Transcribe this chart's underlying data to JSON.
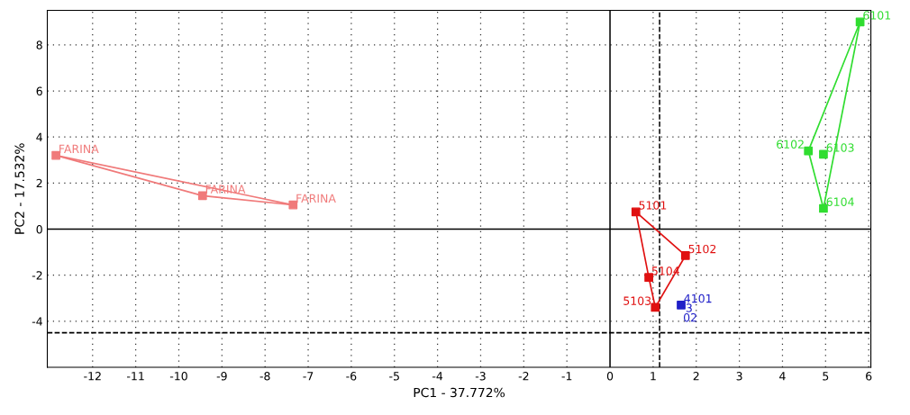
{
  "chart_data": {
    "type": "scatter",
    "xlabel": "PC1 - 37.772%",
    "ylabel": "PC2 - 17.532%",
    "xlim": [
      -13.05,
      6.05
    ],
    "ylim": [
      -6,
      9.5
    ],
    "xticks": [
      -12,
      -11,
      -10,
      -9,
      -8,
      -7,
      -6,
      -5,
      -4,
      -3,
      -2,
      -1,
      0,
      1,
      2,
      3,
      4,
      5,
      6
    ],
    "yticks": [
      -4,
      -2,
      0,
      2,
      4,
      6,
      8
    ],
    "grid": true,
    "marker": "square",
    "series": [
      {
        "type": "line",
        "color": "#f07a7a",
        "x": [
          -12.85,
          -9.45
        ],
        "values": [
          3.2,
          1.45
        ],
        "marker": "none"
      },
      {
        "type": "line",
        "color": "#f07a7a",
        "x": [
          -9.45,
          -7.35
        ],
        "values": [
          1.45,
          1.05
        ],
        "marker": "none"
      },
      {
        "type": "line",
        "color": "#f07a7a",
        "x": [
          -12.85,
          -7.35
        ],
        "values": [
          3.2,
          1.05
        ],
        "marker": "none"
      },
      {
        "color": "#f07a7a",
        "x": [
          -12.85,
          -9.45,
          -7.35
        ],
        "values": [
          3.2,
          1.45,
          1.05
        ]
      },
      {
        "type": "line",
        "color": "#e01010",
        "x": [
          0.6,
          1.75
        ],
        "values": [
          0.75,
          -1.15
        ],
        "marker": "none"
      },
      {
        "type": "line",
        "color": "#e01010",
        "x": [
          1.05,
          1.75
        ],
        "values": [
          -3.4,
          -1.15
        ],
        "marker": "none"
      },
      {
        "type": "line",
        "color": "#e01010",
        "x": [
          0.9,
          1.05
        ],
        "values": [
          -2.1,
          -3.4
        ],
        "marker": "none"
      },
      {
        "type": "line",
        "color": "#e01010",
        "x": [
          0.6,
          0.9
        ],
        "values": [
          0.75,
          -2.1
        ],
        "marker": "none"
      },
      {
        "color": "#e01010",
        "x": [
          0.6,
          1.75,
          1.05,
          0.9
        ],
        "values": [
          0.75,
          -1.15,
          -3.4,
          -2.1
        ]
      },
      {
        "color": "#2020c8",
        "x": [
          1.65
        ],
        "values": [
          -3.3
        ]
      },
      {
        "type": "line",
        "color": "#30dd30",
        "x": [
          4.6,
          5.8
        ],
        "values": [
          3.4,
          9.0
        ],
        "marker": "none"
      },
      {
        "type": "line",
        "color": "#30dd30",
        "x": [
          4.6,
          4.95
        ],
        "values": [
          3.4,
          0.9
        ],
        "marker": "none"
      },
      {
        "type": "line",
        "color": "#30dd30",
        "x": [
          4.95,
          5.8
        ],
        "values": [
          0.9,
          9.0
        ],
        "marker": "none"
      },
      {
        "color": "#30dd30",
        "x": [
          5.8,
          4.6,
          4.95,
          4.95
        ],
        "values": [
          9.0,
          3.4,
          3.25,
          0.9
        ]
      }
    ],
    "ref_lines": [
      {
        "axis": "x",
        "value": 1.15,
        "color": "#000000",
        "line_style": "dashed"
      },
      {
        "axis": "y",
        "value": -4.5,
        "color": "#000000",
        "line_style": "dashed"
      }
    ],
    "annotations": [
      {
        "text": "FARINA",
        "x": -12.85,
        "y": 3.2
      },
      {
        "text": "FARINA",
        "x": -9.45,
        "y": 1.45
      },
      {
        "text": "FARINA",
        "x": -7.35,
        "y": 1.05
      },
      {
        "text": "5101",
        "x": 0.6,
        "y": 0.75
      },
      {
        "text": "5102",
        "x": 1.75,
        "y": -1.15
      },
      {
        "text": "5104",
        "x": 0.9,
        "y": -2.1
      },
      {
        "text": "5103",
        "x": 1.05,
        "y": -3.4
      },
      {
        "text": "4101",
        "x": 1.65,
        "y": -3.3
      },
      "3",
      "02",
      {
        "text": "6101",
        "x": 5.8,
        "y": 9.0
      },
      {
        "text": "6102",
        "x": 4.6,
        "y": 3.4
      },
      {
        "text": "6103",
        "x": 4.95,
        "y": 3.25
      },
      {
        "text": "6104",
        "x": 4.95,
        "y": 0.9
      }
    ]
  }
}
